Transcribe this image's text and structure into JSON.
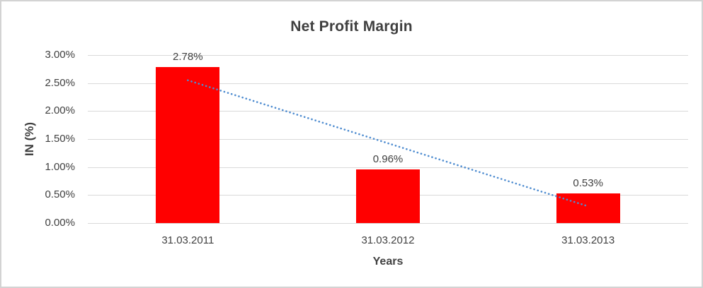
{
  "chart_data": {
    "type": "bar",
    "title": "Net Profit Margin",
    "xlabel": "Years",
    "ylabel": "IN (%)",
    "categories": [
      "31.03.2011",
      "31.03.2012",
      "31.03.2013"
    ],
    "values": [
      2.78,
      0.96,
      0.53
    ],
    "data_labels": [
      "2.78%",
      "0.96%",
      "0.53%"
    ],
    "ylim": [
      0,
      3
    ],
    "ytick_step": 0.5,
    "ytick_labels": [
      "3.00%",
      "2.50%",
      "2.00%",
      "1.50%",
      "1.00%",
      "0.50%",
      "0.00%"
    ],
    "grid": true,
    "legend": "none",
    "colors": {
      "bar": "#FF0000",
      "gridline": "#D9D9D9",
      "text": "#404040",
      "title": "#3F3F3F",
      "trendline": "#4E8CD0",
      "frame_border": "#D3D3D3"
    },
    "trendline": {
      "type": "linear",
      "style": "dotted",
      "start_value": 2.55,
      "end_value": 0.3
    }
  }
}
